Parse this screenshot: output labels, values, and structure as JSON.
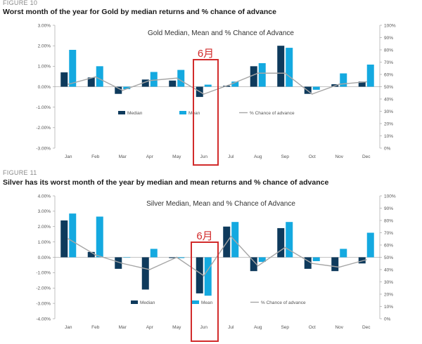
{
  "fig10": {
    "label": "FIGURE 10",
    "title": "Worst month of the year for Gold by median returns and % chance of advance"
  },
  "fig11": {
    "label": "FIGURE 11",
    "title": "Silver has its worst month of the year by median and mean returns and % chance of advance"
  },
  "highlight": {
    "label": "6月",
    "color": "#d22b2b"
  },
  "colors": {
    "median": "#0e3a5c",
    "mean": "#14a9e0",
    "chance": "#a6a6a6"
  },
  "chart_data": [
    {
      "type": "bar",
      "title": "Gold Median, Mean and % Chance of Advance",
      "categories": [
        "Jan",
        "Feb",
        "Mar",
        "Apr",
        "May",
        "Jun",
        "Jul",
        "Aug",
        "Sep",
        "Oct",
        "Nov",
        "Dec"
      ],
      "ylim": [
        -3,
        3
      ],
      "yticks": [
        "3.00%",
        "2.00%",
        "1.00%",
        "0.00%",
        "-1.00%",
        "-2.00%",
        "-3.00%"
      ],
      "y2lim": [
        0,
        100
      ],
      "y2ticks": [
        "100%",
        "90%",
        "80%",
        "70%",
        "60%",
        "50%",
        "40%",
        "30%",
        "20%",
        "10%",
        "0%"
      ],
      "legend": [
        "Median",
        "Mean",
        "% Chance of advance"
      ],
      "highlight_category": "Jun",
      "series": [
        {
          "name": "Median",
          "kind": "bar",
          "values": [
            0.7,
            0.45,
            -0.35,
            0.35,
            0.3,
            -0.5,
            0.05,
            1.0,
            2.0,
            -0.35,
            0.12,
            0.25
          ]
        },
        {
          "name": "Mean",
          "kind": "bar",
          "values": [
            1.8,
            1.0,
            -0.12,
            0.72,
            0.82,
            0.1,
            0.25,
            1.15,
            1.9,
            -0.15,
            0.65,
            1.08
          ]
        },
        {
          "name": "% Chance of advance",
          "kind": "line",
          "axis": "right",
          "values": [
            52,
            58,
            47,
            55,
            57,
            44,
            52,
            61,
            61,
            44,
            52,
            54
          ]
        }
      ]
    },
    {
      "type": "bar",
      "title": "Silver Median, Mean and % Chance of Advance",
      "categories": [
        "Jan",
        "Feb",
        "Mar",
        "Apr",
        "May",
        "Jun",
        "Jul",
        "Aug",
        "Sep",
        "Oct",
        "Nov",
        "Dec"
      ],
      "ylim": [
        -4,
        4
      ],
      "yticks": [
        "4.00%",
        "3.00%",
        "2.00%",
        "1.00%",
        "0.00%",
        "-1.00%",
        "-2.00%",
        "-3.00%",
        "-4.00%"
      ],
      "y2lim": [
        0,
        100
      ],
      "y2ticks": [
        "100%",
        "90%",
        "80%",
        "70%",
        "60%",
        "50%",
        "40%",
        "30%",
        "20%",
        "10%",
        "0%"
      ],
      "legend": [
        "Median",
        "Mean",
        "% Chance of advance"
      ],
      "highlight_category": "Jun",
      "series": [
        {
          "name": "Median",
          "kind": "bar",
          "values": [
            2.4,
            0.35,
            -0.75,
            -2.1,
            -0.05,
            -2.35,
            2.0,
            -0.9,
            1.9,
            -0.75,
            -0.9,
            -0.4
          ]
        },
        {
          "name": "Mean",
          "kind": "bar",
          "values": [
            2.85,
            2.65,
            0.0,
            0.55,
            -0.05,
            -2.5,
            2.3,
            -0.3,
            2.3,
            -0.25,
            0.55,
            1.6
          ]
        },
        {
          "name": "% Chance of advance",
          "kind": "line",
          "axis": "right",
          "values": [
            65,
            52,
            45,
            40,
            50,
            35,
            67,
            43,
            58,
            45,
            42,
            48
          ]
        }
      ]
    }
  ]
}
